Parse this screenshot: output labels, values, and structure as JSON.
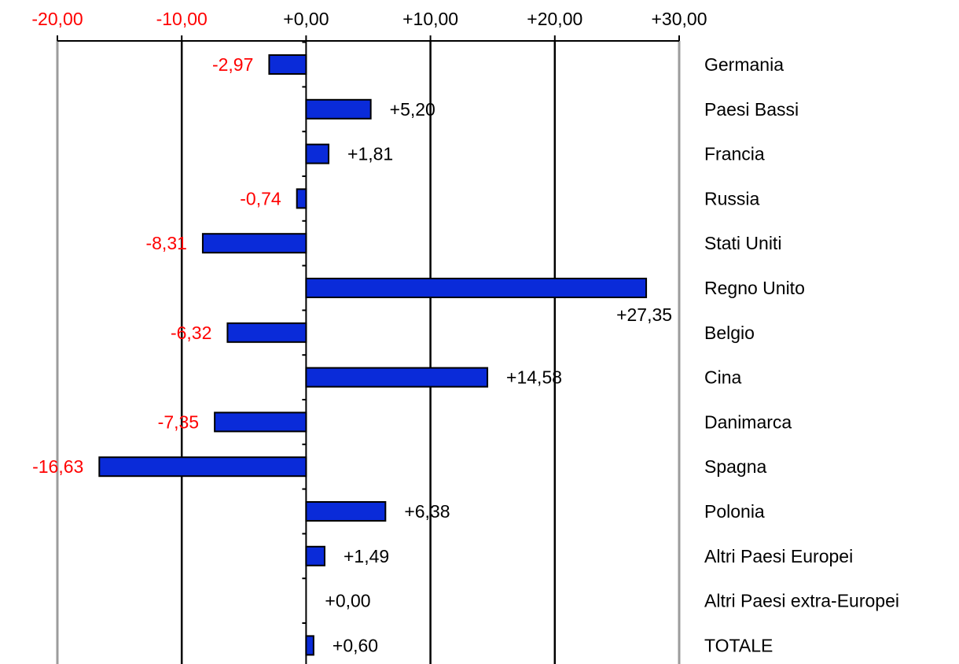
{
  "chart_data": {
    "type": "bar",
    "orientation": "horizontal",
    "title": "",
    "xlabel": "",
    "ylabel": "",
    "xlim": [
      -20,
      30
    ],
    "ticks": [
      -20,
      -10,
      0,
      10,
      20,
      30
    ],
    "tick_labels": [
      "-20,00",
      "-10,00",
      "+0,00",
      "+10,00",
      "+20,00",
      "+30,00"
    ],
    "categories": [
      "Germania",
      "Paesi Bassi",
      "Francia",
      "Russia",
      "Stati Uniti",
      "Regno Unito",
      "Belgio",
      "Cina",
      "Danimarca",
      "Spagna",
      "Polonia",
      "Altri Paesi Europei",
      "Altri Paesi extra-Europei",
      "TOTALE"
    ],
    "values": [
      -2.97,
      5.2,
      1.81,
      -0.74,
      -8.31,
      27.35,
      -6.32,
      14.58,
      -7.35,
      -16.63,
      6.38,
      1.49,
      0.0,
      0.6
    ],
    "value_labels": [
      "-2,97",
      "+5,20",
      "+1,81",
      "-0,74",
      "-8,31",
      "+27,35",
      "-6,32",
      "+14,58",
      "-7,35",
      "-16,63",
      "+6,38",
      "+1,49",
      "+0,00",
      "+0,60"
    ],
    "grid": true,
    "colors": {
      "bar_fill": "#0a2bd9",
      "bar_stroke": "#000000",
      "negative_text": "#ff0000",
      "positive_text": "#000000",
      "grid_inner": "#000000",
      "grid_outer": "#9c9c9c"
    }
  }
}
